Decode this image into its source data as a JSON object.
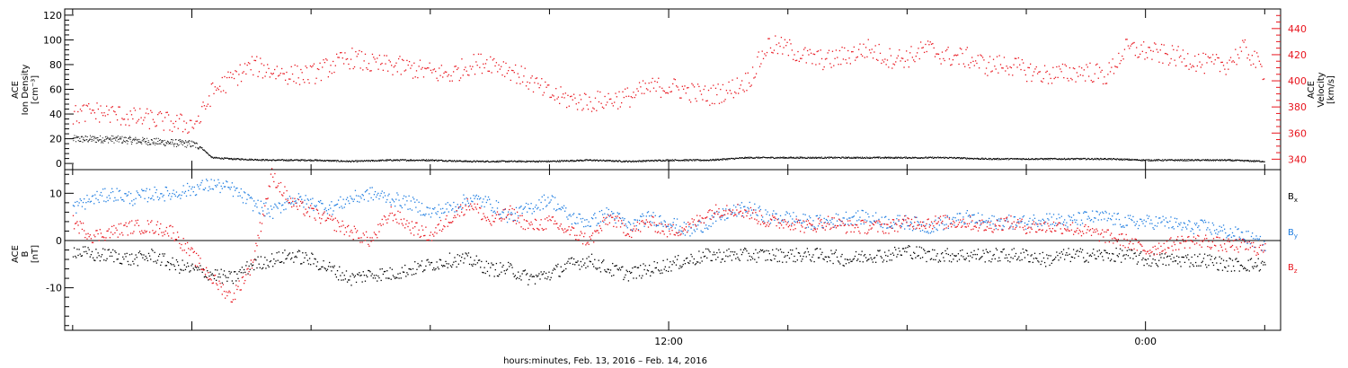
{
  "xlabel": "hours:minutes, Feb. 13, 2016 – Feb. 14, 2016",
  "x_tick_labels": [
    {
      "label": "12:00",
      "hour": 12
    },
    {
      "label": "0:00",
      "hour": 24
    }
  ],
  "chart_data": [
    {
      "type": "scatter",
      "panel": "top",
      "x_unit": "hours since Feb. 13, 2016 00:00",
      "xlim": [
        -3.2,
        27.4
      ],
      "left_axis": {
        "label_lines": [
          "ACE",
          "Ion Density",
          "[cm⁻³]"
        ],
        "ylim": [
          -5,
          125
        ],
        "ticks": [
          0,
          20,
          40,
          60,
          80,
          100,
          120
        ],
        "color": "#000000"
      },
      "right_axis": {
        "label_lines": [
          "ACE",
          "Velocity",
          "[km/s]"
        ],
        "ylim": [
          332,
          455
        ],
        "ticks": [
          340,
          360,
          380,
          400,
          420,
          440
        ],
        "color": "#e8141d"
      },
      "series": [
        {
          "axis": "left",
          "color": "#000000",
          "x": [
            -3.0,
            -2.0,
            -1.0,
            0.0,
            0.2,
            0.5,
            1.0,
            2.0,
            3.0,
            4.0,
            5.0,
            6.0,
            7.0,
            8.0,
            9.0,
            10.0,
            11.0,
            12.0,
            13.0,
            14.0,
            15.0,
            16.0,
            17.0,
            18.0,
            19.0,
            20.0,
            21.0,
            22.0,
            23.0,
            24.0,
            25.0,
            26.0,
            27.0
          ],
          "y": [
            20,
            20,
            18,
            16,
            14,
            5,
            4,
            3,
            3,
            2,
            3,
            3,
            2,
            2,
            2,
            3,
            2,
            3,
            3,
            5,
            5,
            5,
            5,
            5,
            5,
            4,
            4,
            4,
            4,
            3,
            3,
            3,
            2
          ]
        },
        {
          "axis": "right",
          "color": "#e8141d",
          "x": [
            -3.0,
            -2.5,
            -2.0,
            -1.5,
            -1.0,
            -0.5,
            0.0,
            0.2,
            0.5,
            1.0,
            1.5,
            2.0,
            2.5,
            3.0,
            3.5,
            4.0,
            4.5,
            5.0,
            5.5,
            6.0,
            6.5,
            7.0,
            7.5,
            8.0,
            8.5,
            9.0,
            9.5,
            10.0,
            10.5,
            11.0,
            11.5,
            12.0,
            12.5,
            13.0,
            13.5,
            14.0,
            14.5,
            15.0,
            15.5,
            16.0,
            16.5,
            17.0,
            17.5,
            18.0,
            18.5,
            19.0,
            19.5,
            20.0,
            20.5,
            21.0,
            21.5,
            22.0,
            22.5,
            23.0,
            23.5,
            24.0,
            24.5,
            25.0,
            25.5,
            26.0,
            26.5,
            27.0
          ],
          "y": [
            374,
            377,
            375,
            372,
            371,
            368,
            367,
            372,
            392,
            402,
            412,
            408,
            405,
            405,
            412,
            418,
            413,
            412,
            410,
            407,
            405,
            413,
            415,
            409,
            400,
            390,
            386,
            384,
            386,
            388,
            395,
            396,
            392,
            389,
            393,
            401,
            428,
            425,
            418,
            416,
            420,
            425,
            418,
            418,
            425,
            419,
            418,
            412,
            413,
            408,
            405,
            406,
            408,
            404,
            425,
            423,
            420,
            418,
            413,
            413,
            425,
            406
          ]
        }
      ]
    },
    {
      "type": "scatter",
      "panel": "bottom",
      "x_unit": "hours since Feb. 13, 2016 00:00",
      "xlim": [
        -3.2,
        27.4
      ],
      "left_axis": {
        "label_lines": [
          "ACE",
          "B",
          "[nT]"
        ],
        "ylim": [
          -19,
          15
        ],
        "ticks": [
          -10,
          0,
          10
        ],
        "color": "#000000"
      },
      "zero_line": true,
      "series": [
        {
          "name": "Bx",
          "color": "#000000",
          "x": [
            -3.0,
            -2.5,
            -2.0,
            -1.5,
            -1.0,
            -0.5,
            0.0,
            0.5,
            1.0,
            1.5,
            2.0,
            2.5,
            3.0,
            3.5,
            4.0,
            4.5,
            5.0,
            5.5,
            6.0,
            6.5,
            7.0,
            7.5,
            8.0,
            8.5,
            9.0,
            9.5,
            10.0,
            10.5,
            11.0,
            11.5,
            12.0,
            12.5,
            13.0,
            13.5,
            14.0,
            14.5,
            15.0,
            15.5,
            16.0,
            16.5,
            17.0,
            17.5,
            18.0,
            18.5,
            19.0,
            19.5,
            20.0,
            20.5,
            21.0,
            21.5,
            22.0,
            22.5,
            23.0,
            23.5,
            24.0,
            24.5,
            25.0,
            25.5,
            26.0,
            26.5,
            27.0
          ],
          "y": [
            -2,
            -3,
            -3,
            -4,
            -3,
            -5,
            -6,
            -7,
            -8,
            -5,
            -4,
            -3,
            -4,
            -6,
            -8,
            -7,
            -7,
            -6,
            -5,
            -4,
            -4,
            -6,
            -6,
            -8,
            -7,
            -5,
            -4,
            -6,
            -7,
            -6,
            -5,
            -4,
            -3,
            -3,
            -3,
            -3,
            -3,
            -3,
            -3,
            -4,
            -3,
            -3,
            -2,
            -3,
            -3,
            -3,
            -3,
            -3,
            -3,
            -4,
            -3,
            -3,
            -3,
            -3,
            -4,
            -4,
            -4,
            -4,
            -5,
            -5,
            -5
          ]
        },
        {
          "name": "By",
          "color": "#1d7ce0",
          "x": [
            -3.0,
            -2.5,
            -2.0,
            -1.5,
            -1.0,
            -0.5,
            0.0,
            0.5,
            1.0,
            1.5,
            2.0,
            2.5,
            3.0,
            3.5,
            4.0,
            4.5,
            5.0,
            5.5,
            6.0,
            6.5,
            7.0,
            7.5,
            8.0,
            8.5,
            9.0,
            9.5,
            10.0,
            10.5,
            11.0,
            11.5,
            12.0,
            12.5,
            13.0,
            13.5,
            14.0,
            14.5,
            15.0,
            15.5,
            16.0,
            16.5,
            17.0,
            17.5,
            18.0,
            18.5,
            19.0,
            19.5,
            20.0,
            20.5,
            21.0,
            21.5,
            22.0,
            22.5,
            23.0,
            23.5,
            24.0,
            24.5,
            25.0,
            25.5,
            26.0,
            26.5,
            27.0
          ],
          "y": [
            7,
            9,
            10,
            9,
            10,
            10,
            11,
            12,
            11,
            8,
            6,
            9,
            8,
            7,
            9,
            10,
            9,
            8,
            6,
            7,
            9,
            8,
            5,
            7,
            9,
            5,
            4,
            6,
            3,
            5,
            4,
            2,
            4,
            6,
            7,
            5,
            5,
            4,
            4,
            5,
            5,
            4,
            4,
            3,
            4,
            5,
            4,
            4,
            4,
            5,
            4,
            5,
            5,
            4,
            4,
            4,
            3,
            3,
            2,
            1,
            -1
          ]
        },
        {
          "name": "Bz",
          "color": "#e8141d",
          "x": [
            -3.0,
            -2.5,
            -2.0,
            -1.5,
            -1.0,
            -0.5,
            0.0,
            0.5,
            1.0,
            1.5,
            2.0,
            2.5,
            3.0,
            3.5,
            4.0,
            4.5,
            5.0,
            5.5,
            6.0,
            6.5,
            7.0,
            7.5,
            8.0,
            8.5,
            9.0,
            9.5,
            10.0,
            10.5,
            11.0,
            11.5,
            12.0,
            12.5,
            13.0,
            13.5,
            14.0,
            14.5,
            15.0,
            15.5,
            16.0,
            16.5,
            17.0,
            17.5,
            18.0,
            18.5,
            19.0,
            19.5,
            20.0,
            20.5,
            21.0,
            21.5,
            22.0,
            22.5,
            23.0,
            23.5,
            24.0,
            24.5,
            25.0,
            25.5,
            26.0,
            26.5,
            27.0
          ],
          "y": [
            4,
            1,
            2,
            3,
            3,
            2,
            -3,
            -8,
            -12,
            -5,
            14,
            8,
            6,
            4,
            2,
            0,
            6,
            3,
            1,
            5,
            8,
            4,
            6,
            3,
            4,
            2,
            0,
            5,
            2,
            4,
            2,
            3,
            6,
            7,
            6,
            4,
            4,
            3,
            4,
            3,
            3,
            3,
            4,
            4,
            4,
            4,
            3,
            4,
            3,
            3,
            3,
            2,
            1,
            0,
            -2,
            -1,
            0,
            0,
            -1,
            -1,
            -2
          ]
        }
      ]
    }
  ],
  "legend": [
    {
      "base": "B",
      "sub": "x",
      "color": "#000000"
    },
    {
      "base": "B",
      "sub": "y",
      "color": "#1d7ce0"
    },
    {
      "base": "B",
      "sub": "z",
      "color": "#e8141d"
    }
  ]
}
